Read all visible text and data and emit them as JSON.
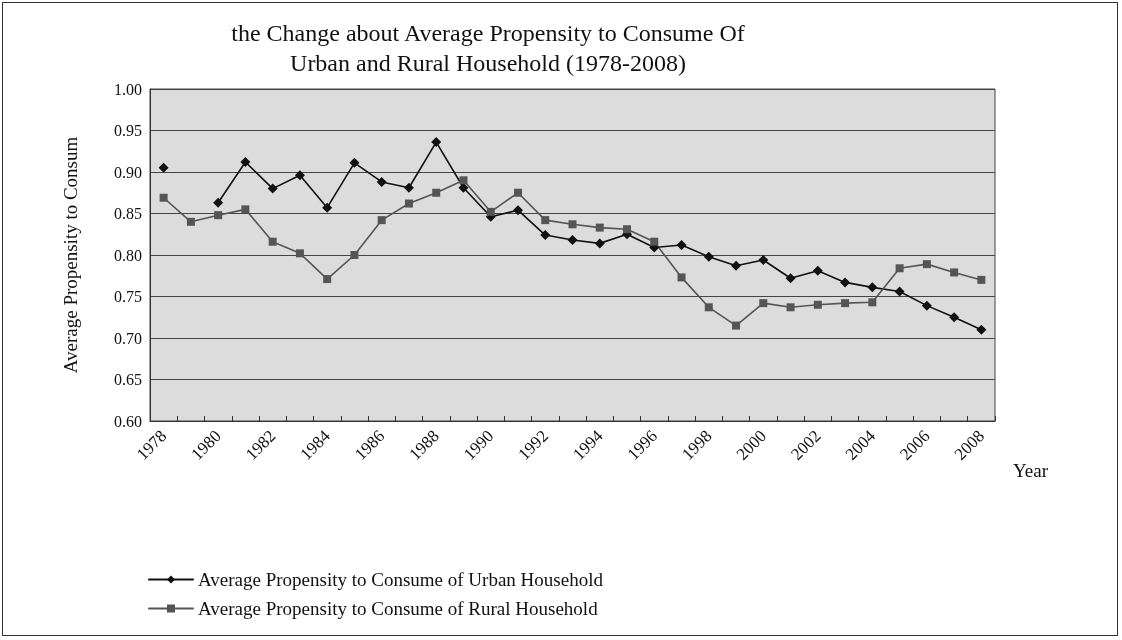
{
  "chart_data": {
    "type": "line",
    "title": "the Change about Average Propensity to Consume Of\nUrban and Rural Household (1978-2008)",
    "xlabel": "Year",
    "ylabel": "Average Propensity to Consum",
    "categories": [
      "1978",
      null,
      "1980",
      null,
      "1982",
      null,
      "1984",
      null,
      "1986",
      null,
      "1988",
      null,
      "1990",
      null,
      "1992",
      null,
      "1994",
      null,
      "1996",
      null,
      "1998",
      null,
      "2000",
      null,
      "2002",
      null,
      "2004",
      null,
      "2006",
      null,
      "2008"
    ],
    "series": [
      {
        "name": "Average Propensity to Consume of Urban Household",
        "color": "#111111",
        "marker": "diamond",
        "values": [
          0.905,
          null,
          0.863,
          0.912,
          0.88,
          0.896,
          0.857,
          0.911,
          0.888,
          0.881,
          0.936,
          0.881,
          0.846,
          0.854,
          0.824,
          0.818,
          0.814,
          0.825,
          0.809,
          0.812,
          0.798,
          0.787,
          0.794,
          0.772,
          0.781,
          0.767,
          0.761,
          0.756,
          0.739,
          0.725,
          0.71
        ]
      },
      {
        "name": "Average Propensity to Consume of Rural Household",
        "color": "#555555",
        "marker": "square",
        "values": [
          0.869,
          0.84,
          0.848,
          0.855,
          0.816,
          0.802,
          0.771,
          0.8,
          0.842,
          0.862,
          0.875,
          0.89,
          0.852,
          0.875,
          0.842,
          0.837,
          0.833,
          0.831,
          0.816,
          0.773,
          0.737,
          0.715,
          0.742,
          0.737,
          0.74,
          0.742,
          0.743,
          0.784,
          0.789,
          0.779,
          0.77
        ]
      }
    ],
    "ylim": [
      0.6,
      1.0
    ],
    "yticks": [
      {
        "value": 0.6,
        "label": "0.60"
      },
      {
        "value": 0.65,
        "label": "0.65"
      },
      {
        "value": 0.7,
        "label": "0.70"
      },
      {
        "value": 0.75,
        "label": "0.75"
      },
      {
        "value": 0.8,
        "label": "0.80"
      },
      {
        "value": 0.85,
        "label": "0.85"
      },
      {
        "value": 0.9,
        "label": "0.90"
      },
      {
        "value": 0.95,
        "label": "0.95"
      },
      {
        "value": 1.0,
        "label": "1.00"
      }
    ],
    "grid": "y",
    "legend": "bottom left"
  }
}
